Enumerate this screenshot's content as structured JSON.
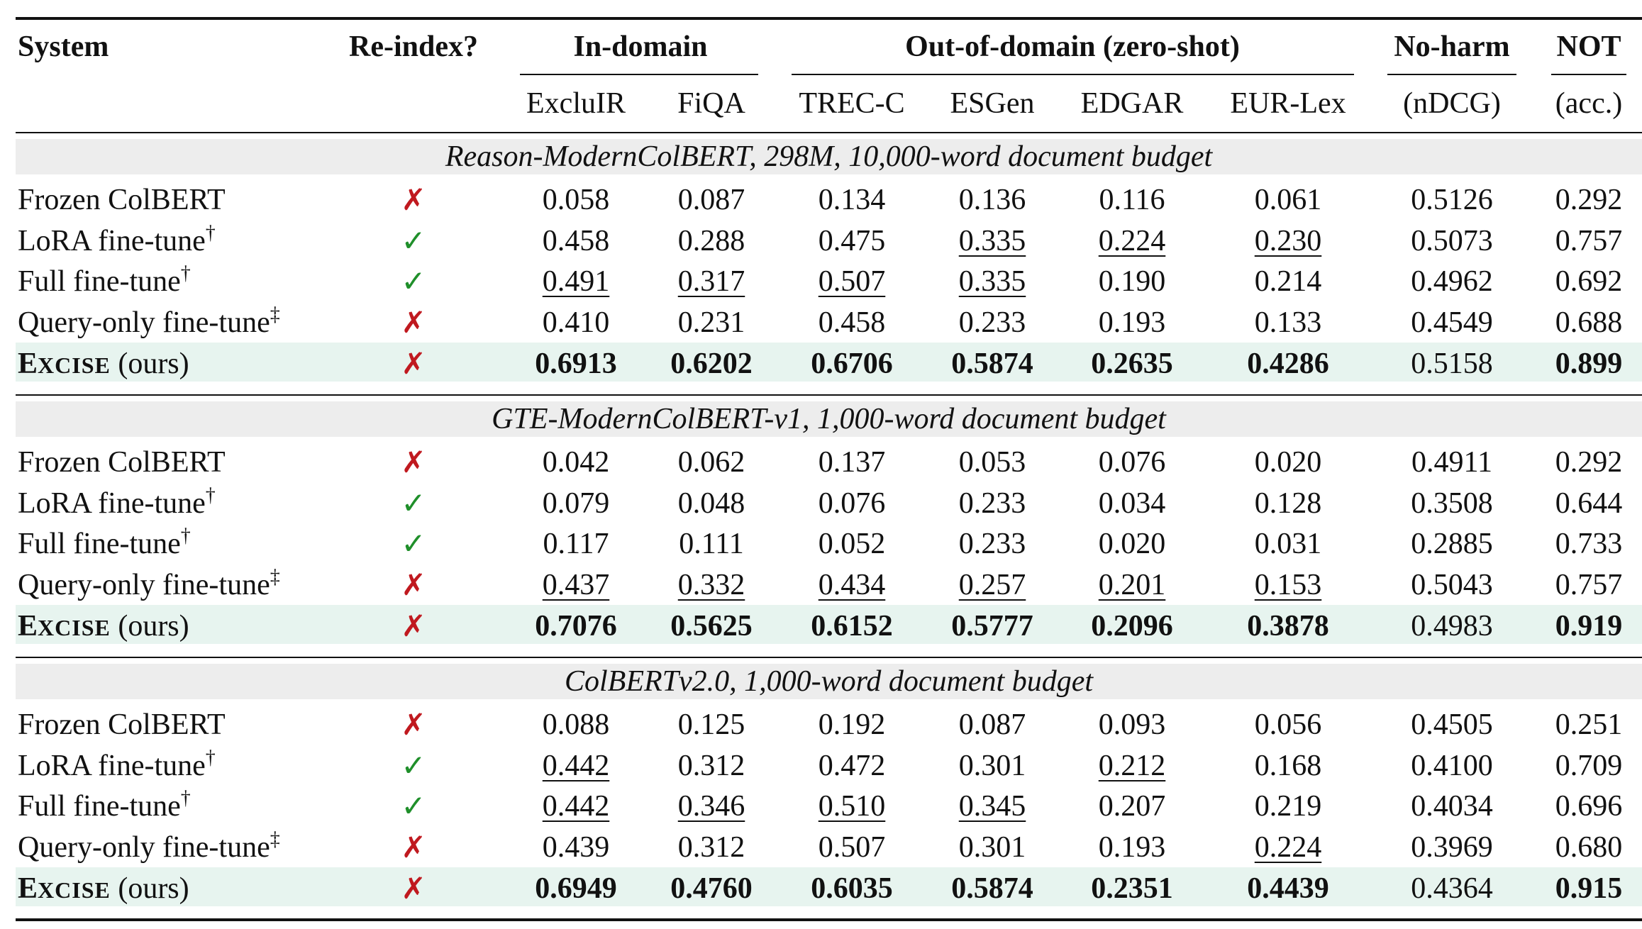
{
  "header": {
    "system": "System",
    "reindex": "Re-index?",
    "in_domain": "In-domain",
    "out_domain": "Out-of-domain (zero-shot)",
    "no_harm": "No-harm",
    "not": "NOT",
    "sub": [
      "ExcluIR",
      "FiQA",
      "TREC-C",
      "ESGen",
      "EDGAR",
      "EUR-Lex"
    ],
    "no_harm_sub": "(nDCG)",
    "not_sub": "(acc.)"
  },
  "colors": {
    "cross": "#c0191f",
    "check": "#1f8f2a",
    "group_bg": "#ededed",
    "ours_bg": "#e7f4ef"
  },
  "groups": [
    {
      "title": "Reason-ModernColBERT, 298M, 10,000-word document budget",
      "rows": [
        {
          "system": "Frozen ColBERT",
          "sup": "",
          "reindex": false,
          "vals": [
            "0.058",
            "0.087",
            "0.134",
            "0.136",
            "0.116",
            "0.061",
            "0.5126",
            "0.292"
          ],
          "u": [],
          "b": []
        },
        {
          "system": "LoRA fine-tune",
          "sup": "†",
          "reindex": true,
          "vals": [
            "0.458",
            "0.288",
            "0.475",
            "0.335",
            "0.224",
            "0.230",
            "0.5073",
            "0.757"
          ],
          "u": [
            3,
            4,
            5
          ],
          "b": []
        },
        {
          "system": "Full fine-tune",
          "sup": "†",
          "reindex": true,
          "vals": [
            "0.491",
            "0.317",
            "0.507",
            "0.335",
            "0.190",
            "0.214",
            "0.4962",
            "0.692"
          ],
          "u": [
            0,
            1,
            2,
            3
          ],
          "b": []
        },
        {
          "system": "Query-only fine-tune",
          "sup": "‡",
          "reindex": false,
          "vals": [
            "0.410",
            "0.231",
            "0.458",
            "0.233",
            "0.193",
            "0.133",
            "0.4549",
            "0.688"
          ],
          "u": [],
          "b": []
        },
        {
          "system": "EXCISE",
          "ours": true,
          "suffix": " (ours)",
          "sup": "",
          "reindex": false,
          "vals": [
            "0.6913",
            "0.6202",
            "0.6706",
            "0.5874",
            "0.2635",
            "0.4286",
            "0.5158",
            "0.899"
          ],
          "u": [],
          "b": [
            0,
            1,
            2,
            3,
            4,
            5,
            7
          ]
        }
      ]
    },
    {
      "title": "GTE-ModernColBERT-v1, 1,000-word document budget",
      "rows": [
        {
          "system": "Frozen ColBERT",
          "sup": "",
          "reindex": false,
          "vals": [
            "0.042",
            "0.062",
            "0.137",
            "0.053",
            "0.076",
            "0.020",
            "0.4911",
            "0.292"
          ],
          "u": [],
          "b": []
        },
        {
          "system": "LoRA fine-tune",
          "sup": "†",
          "reindex": true,
          "vals": [
            "0.079",
            "0.048",
            "0.076",
            "0.233",
            "0.034",
            "0.128",
            "0.3508",
            "0.644"
          ],
          "u": [],
          "b": []
        },
        {
          "system": "Full fine-tune",
          "sup": "†",
          "reindex": true,
          "vals": [
            "0.117",
            "0.111",
            "0.052",
            "0.233",
            "0.020",
            "0.031",
            "0.2885",
            "0.733"
          ],
          "u": [],
          "b": []
        },
        {
          "system": "Query-only fine-tune",
          "sup": "‡",
          "reindex": false,
          "vals": [
            "0.437",
            "0.332",
            "0.434",
            "0.257",
            "0.201",
            "0.153",
            "0.5043",
            "0.757"
          ],
          "u": [
            0,
            1,
            2,
            3,
            4,
            5
          ],
          "b": []
        },
        {
          "system": "EXCISE",
          "ours": true,
          "suffix": " (ours)",
          "sup": "",
          "reindex": false,
          "vals": [
            "0.7076",
            "0.5625",
            "0.6152",
            "0.5777",
            "0.2096",
            "0.3878",
            "0.4983",
            "0.919"
          ],
          "u": [],
          "b": [
            0,
            1,
            2,
            3,
            4,
            5,
            7
          ]
        }
      ]
    },
    {
      "title": "ColBERTv2.0, 1,000-word document budget",
      "rows": [
        {
          "system": "Frozen ColBERT",
          "sup": "",
          "reindex": false,
          "vals": [
            "0.088",
            "0.125",
            "0.192",
            "0.087",
            "0.093",
            "0.056",
            "0.4505",
            "0.251"
          ],
          "u": [],
          "b": []
        },
        {
          "system": "LoRA fine-tune",
          "sup": "†",
          "reindex": true,
          "vals": [
            "0.442",
            "0.312",
            "0.472",
            "0.301",
            "0.212",
            "0.168",
            "0.4100",
            "0.709"
          ],
          "u": [
            0,
            4
          ],
          "b": []
        },
        {
          "system": "Full fine-tune",
          "sup": "†",
          "reindex": true,
          "vals": [
            "0.442",
            "0.346",
            "0.510",
            "0.345",
            "0.207",
            "0.219",
            "0.4034",
            "0.696"
          ],
          "u": [
            0,
            1,
            2,
            3
          ],
          "b": []
        },
        {
          "system": "Query-only fine-tune",
          "sup": "‡",
          "reindex": false,
          "vals": [
            "0.439",
            "0.312",
            "0.507",
            "0.301",
            "0.193",
            "0.224",
            "0.3969",
            "0.680"
          ],
          "u": [
            5
          ],
          "b": []
        },
        {
          "system": "EXCISE",
          "ours": true,
          "suffix": " (ours)",
          "sup": "",
          "reindex": false,
          "vals": [
            "0.6949",
            "0.4760",
            "0.6035",
            "0.5874",
            "0.2351",
            "0.4439",
            "0.4364",
            "0.915"
          ],
          "u": [],
          "b": [
            0,
            1,
            2,
            3,
            4,
            5,
            7
          ]
        }
      ]
    }
  ],
  "marks": {
    "check": "✓",
    "cross": "✗"
  }
}
